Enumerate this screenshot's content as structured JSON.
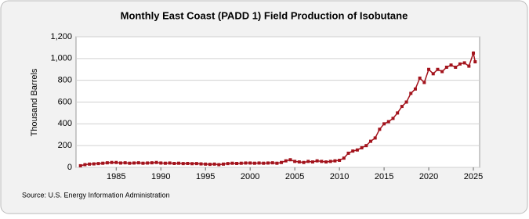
{
  "chart_data": {
    "type": "line",
    "title": "Monthly East Coast (PADD 1) Field Production of Isobutane",
    "y_label": "Thousand Barrels",
    "source": "Source: U.S. Energy Information Administration",
    "x": [
      1981,
      1981.5,
      1982,
      1982.5,
      1983,
      1983.5,
      1984,
      1984.5,
      1985,
      1985.5,
      1986,
      1986.5,
      1987,
      1987.5,
      1988,
      1988.5,
      1989,
      1989.5,
      1990,
      1990.5,
      1991,
      1991.5,
      1992,
      1992.5,
      1993,
      1993.5,
      1994,
      1994.5,
      1995,
      1995.5,
      1996,
      1996.5,
      1997,
      1997.5,
      1998,
      1998.5,
      1999,
      1999.5,
      2000,
      2000.5,
      2001,
      2001.5,
      2002,
      2002.5,
      2003,
      2003.5,
      2004,
      2004.5,
      2005,
      2005.5,
      2006,
      2006.5,
      2007,
      2007.5,
      2008,
      2008.5,
      2009,
      2009.5,
      2010,
      2010.5,
      2011,
      2011.5,
      2012,
      2012.5,
      2013,
      2013.5,
      2014,
      2014.5,
      2015,
      2015.5,
      2016,
      2016.5,
      2017,
      2017.5,
      2018,
      2018.5,
      2019,
      2019.5,
      2020,
      2020.5,
      2021,
      2021.5,
      2022,
      2022.5,
      2023,
      2023.5,
      2024,
      2024.5,
      2025,
      2025.2
    ],
    "series": [
      {
        "name": "Isobutane",
        "color": "#a3131c",
        "values": [
          15,
          25,
          30,
          32,
          35,
          38,
          42,
          45,
          45,
          40,
          42,
          38,
          40,
          42,
          38,
          40,
          42,
          45,
          40,
          38,
          40,
          36,
          38,
          35,
          36,
          34,
          35,
          32,
          30,
          28,
          30,
          25,
          30,
          35,
          38,
          36,
          38,
          40,
          40,
          38,
          40,
          38,
          40,
          42,
          38,
          45,
          60,
          70,
          55,
          50,
          45,
          55,
          50,
          60,
          55,
          50,
          55,
          60,
          65,
          85,
          130,
          150,
          160,
          180,
          200,
          240,
          270,
          350,
          400,
          420,
          450,
          500,
          560,
          600,
          680,
          720,
          820,
          780,
          900,
          860,
          900,
          880,
          920,
          940,
          920,
          950,
          960,
          930,
          1050,
          970
        ]
      }
    ],
    "xlim": [
      1980.5,
      2025.7
    ],
    "xticks": [
      1985,
      1990,
      1995,
      2000,
      2005,
      2010,
      2015,
      2020,
      2025
    ],
    "ylim": [
      0,
      1200
    ],
    "yticks": [
      0,
      200,
      400,
      600,
      800,
      {
        "value": 1000,
        "label": "1,000"
      },
      {
        "value": 1200,
        "label": "1,200"
      }
    ],
    "grid": true
  }
}
